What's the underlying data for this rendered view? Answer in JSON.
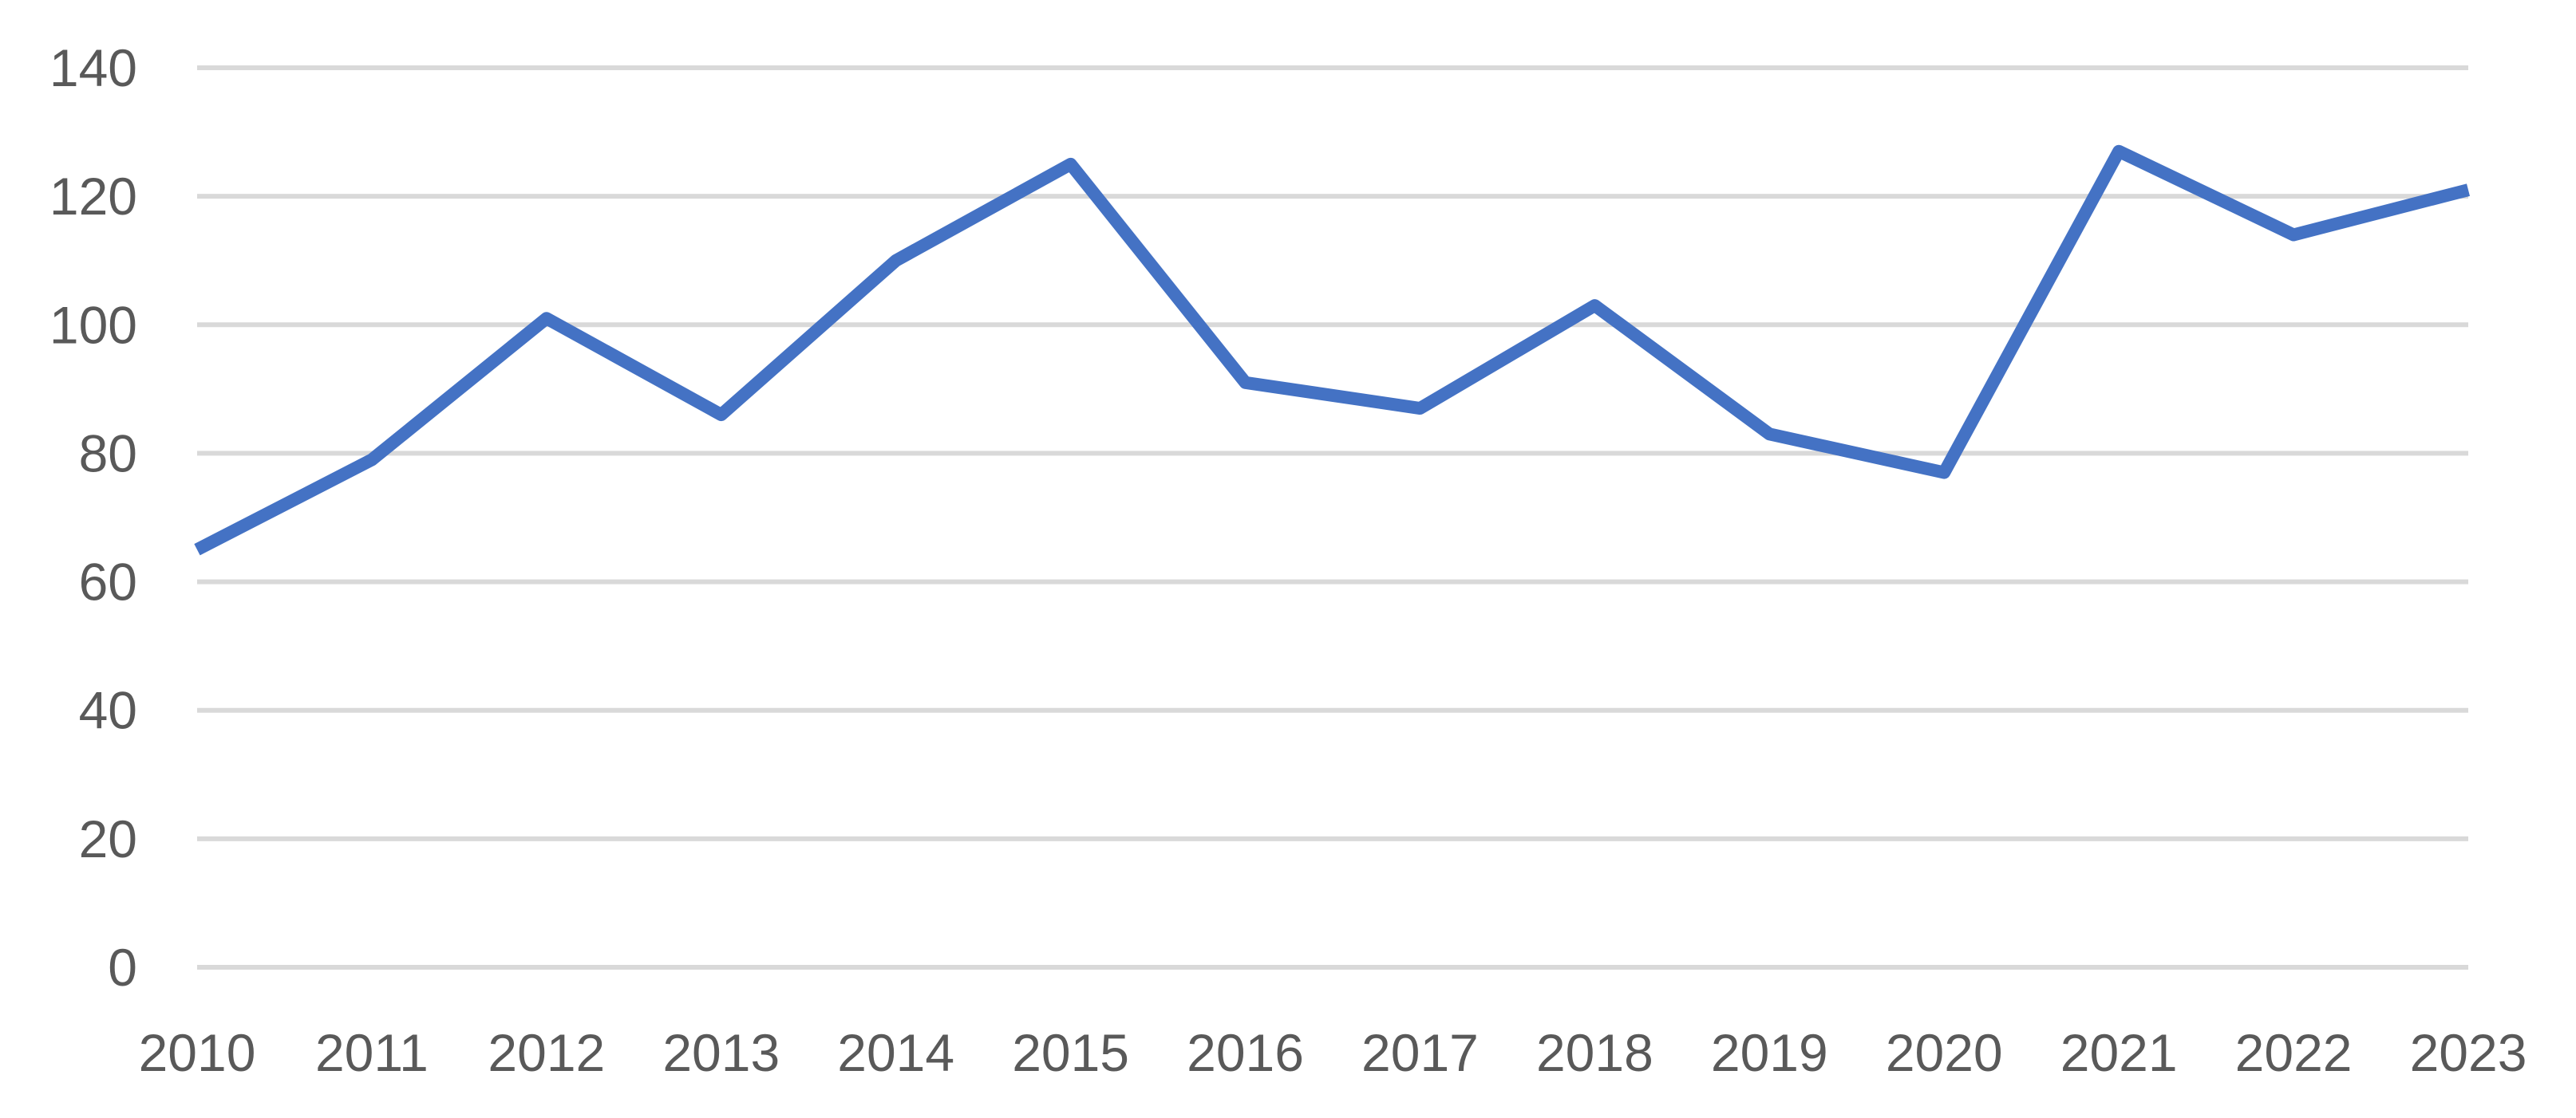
{
  "chart_data": {
    "type": "line",
    "title": "",
    "xlabel": "",
    "ylabel": "",
    "categories": [
      "2010",
      "2011",
      "2012",
      "2013",
      "2014",
      "2015",
      "2016",
      "2017",
      "2018",
      "2019",
      "2020",
      "2021",
      "2022",
      "2023"
    ],
    "series": [
      {
        "values": [
          65,
          79,
          101,
          86,
          110,
          125,
          91,
          87,
          103,
          83,
          77,
          127,
          114,
          121
        ],
        "color": "#4472c4"
      }
    ],
    "ylim": [
      0,
      140
    ],
    "yticks": [
      "0",
      "20",
      "40",
      "60",
      "80",
      "100",
      "120",
      "140"
    ],
    "grid": "horizontal",
    "legend": "none"
  }
}
